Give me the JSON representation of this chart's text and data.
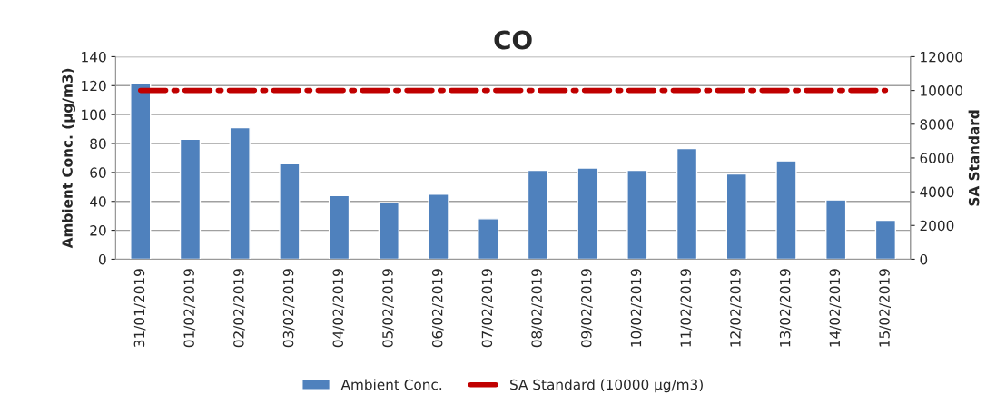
{
  "chart_data": {
    "type": "bar",
    "title": "CO",
    "ylabel": "Ambient Conc. (µg/m3)",
    "y2label": "SA Standard",
    "categories": [
      "31/01/2019",
      "01/02/2019",
      "02/02/2019",
      "03/02/2019",
      "04/02/2019",
      "05/02/2019",
      "06/02/2019",
      "07/02/2019",
      "08/02/2019",
      "09/02/2019",
      "10/02/2019",
      "11/02/2019",
      "12/02/2019",
      "13/02/2019",
      "14/02/2019",
      "15/02/2019"
    ],
    "series": [
      {
        "name": "Ambient Conc.",
        "color": "#4f81bd",
        "values": [
          121.5,
          83,
          91,
          66,
          44,
          39,
          45,
          28,
          61.5,
          63,
          61.5,
          76.5,
          59,
          68,
          41,
          27
        ]
      },
      {
        "name": "SA Standard (10000 µg/m3)",
        "type": "line",
        "axis": "y2",
        "color": "#c00000",
        "line_style": "dashed",
        "values": [
          10000,
          10000,
          10000,
          10000,
          10000,
          10000,
          10000,
          10000,
          10000,
          10000,
          10000,
          10000,
          10000,
          10000,
          10000,
          10000
        ]
      }
    ],
    "ylim": [
      0,
      140
    ],
    "yticks": [
      0,
      20,
      40,
      60,
      80,
      100,
      120,
      140
    ],
    "y2lim": [
      0,
      12000
    ],
    "y2ticks": [
      0,
      2000,
      4000,
      6000,
      8000,
      10000,
      12000
    ],
    "grid": "y",
    "legend": "bottom"
  }
}
